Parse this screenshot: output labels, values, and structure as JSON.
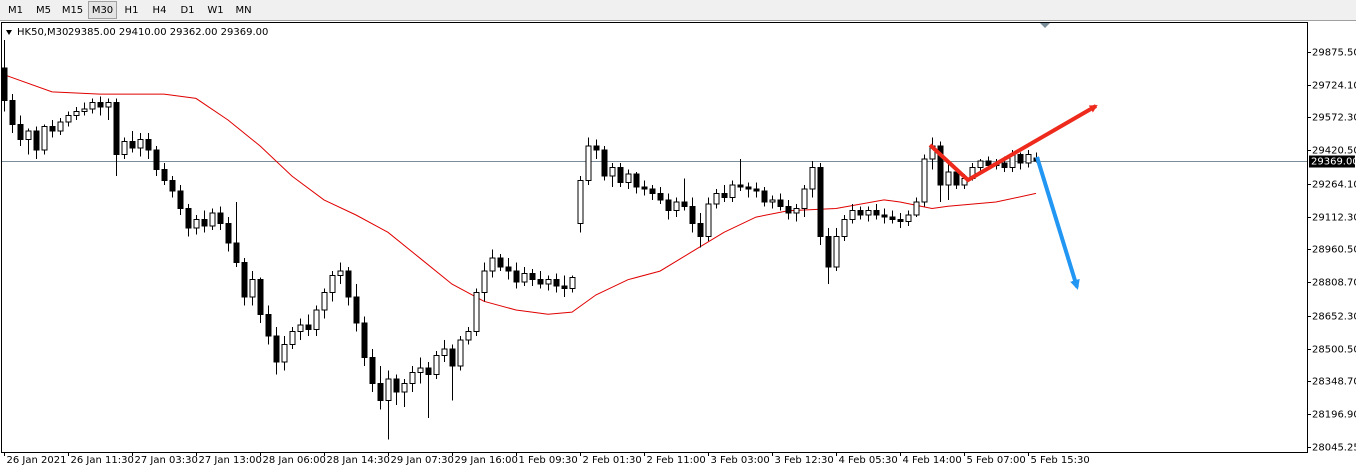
{
  "toolbar": {
    "timeframes": [
      "M1",
      "M5",
      "M15",
      "M30",
      "H1",
      "H4",
      "D1",
      "W1",
      "MN"
    ],
    "active": "M30"
  },
  "header": {
    "symbol": "HK50,M30",
    "quote": "29385.00 29410.00 29362.00 29369.00"
  },
  "chart_data": {
    "type": "candlestick",
    "ylim": [
      28022,
      30014
    ],
    "yticks": [
      {
        "value": 29875.5,
        "label": "29875.50"
      },
      {
        "value": 29724.1,
        "label": "29724.10"
      },
      {
        "value": 29572.3,
        "label": "29572.30"
      },
      {
        "value": 29420.5,
        "label": "29420.50"
      },
      {
        "value": 29264.1,
        "label": "29264.10"
      },
      {
        "value": 29112.3,
        "label": "29112.30"
      },
      {
        "value": 28960.5,
        "label": "28960.50"
      },
      {
        "value": 28808.7,
        "label": "28808.70"
      },
      {
        "value": 28652.3,
        "label": "28652.30"
      },
      {
        "value": 28500.5,
        "label": "28500.50"
      },
      {
        "value": 28348.7,
        "label": "28348.70"
      },
      {
        "value": 28196.9,
        "label": "28196.90"
      },
      {
        "value": 28045.25,
        "label": "28045.25"
      }
    ],
    "current_price": {
      "value": 29369,
      "label": "29369.00"
    },
    "up_color": "#ffffff",
    "down_color": "#000000",
    "wick_color": "#000000",
    "price_line_color": "#7a8e9a",
    "categories": [
      "26 Jan 2021",
      null,
      null,
      null,
      null,
      null,
      null,
      null,
      "26 Jan 11:30",
      null,
      null,
      null,
      null,
      null,
      null,
      null,
      "27 Jan 03:30",
      null,
      null,
      null,
      null,
      null,
      null,
      null,
      "27 Jan 13:00",
      null,
      null,
      null,
      null,
      null,
      null,
      null,
      "28 Jan 06:00",
      null,
      null,
      null,
      null,
      null,
      null,
      null,
      "28 Jan 14:30",
      null,
      null,
      null,
      null,
      null,
      null,
      null,
      "29 Jan 07:30",
      null,
      null,
      null,
      null,
      null,
      null,
      null,
      "29 Jan 16:00",
      null,
      null,
      null,
      null,
      null,
      null,
      null,
      "1 Feb 09:30",
      null,
      null,
      null,
      null,
      null,
      null,
      null,
      "2 Feb 01:30",
      null,
      null,
      null,
      null,
      null,
      null,
      null,
      "2 Feb 11:00",
      null,
      null,
      null,
      null,
      null,
      null,
      null,
      "3 Feb 03:00",
      null,
      null,
      null,
      null,
      null,
      null,
      null,
      "3 Feb 12:30",
      null,
      null,
      null,
      null,
      null,
      null,
      null,
      "4 Feb 05:30",
      null,
      null,
      null,
      null,
      null,
      null,
      null,
      "4 Feb 14:00",
      null,
      null,
      null,
      null,
      null,
      null,
      null,
      "5 Feb 07:00",
      null,
      null,
      null,
      null,
      null,
      null,
      null,
      "5 Feb 15:30",
      null
    ],
    "ohlc": [
      [
        29800,
        29930,
        29600,
        29650
      ],
      [
        29650,
        29680,
        29500,
        29540
      ],
      [
        29540,
        29580,
        29440,
        29470
      ],
      [
        29470,
        29520,
        29400,
        29510
      ],
      [
        29510,
        29530,
        29380,
        29420
      ],
      [
        29420,
        29540,
        29400,
        29530
      ],
      [
        29530,
        29560,
        29480,
        29510
      ],
      [
        29510,
        29570,
        29490,
        29550
      ],
      [
        29550,
        29600,
        29530,
        29580
      ],
      [
        29580,
        29620,
        29560,
        29600
      ],
      [
        29600,
        29640,
        29580,
        29610
      ],
      [
        29610,
        29660,
        29590,
        29640
      ],
      [
        29640,
        29670,
        29580,
        29620
      ],
      [
        29620,
        29660,
        29560,
        29640
      ],
      [
        29640,
        29660,
        29300,
        29400
      ],
      [
        29400,
        29480,
        29380,
        29460
      ],
      [
        29460,
        29510,
        29410,
        29430
      ],
      [
        29430,
        29500,
        29390,
        29470
      ],
      [
        29470,
        29500,
        29380,
        29420
      ],
      [
        29420,
        29440,
        29300,
        29330
      ],
      [
        29330,
        29360,
        29260,
        29280
      ],
      [
        29280,
        29300,
        29200,
        29230
      ],
      [
        29230,
        29260,
        29120,
        29150
      ],
      [
        29150,
        29170,
        29020,
        29060
      ],
      [
        29060,
        29120,
        29030,
        29100
      ],
      [
        29100,
        29140,
        29040,
        29070
      ],
      [
        29070,
        29150,
        29050,
        29130
      ],
      [
        29130,
        29160,
        29050,
        29080
      ],
      [
        29080,
        29110,
        28950,
        28990
      ],
      [
        28990,
        29180,
        28880,
        28900
      ],
      [
        28900,
        28920,
        28700,
        28740
      ],
      [
        28740,
        28860,
        28700,
        28820
      ],
      [
        28820,
        28830,
        28620,
        28660
      ],
      [
        28660,
        28700,
        28520,
        28560
      ],
      [
        28560,
        28600,
        28380,
        28440
      ],
      [
        28440,
        28560,
        28400,
        28520
      ],
      [
        28520,
        28600,
        28500,
        28580
      ],
      [
        28580,
        28640,
        28540,
        28610
      ],
      [
        28610,
        28660,
        28560,
        28590
      ],
      [
        28590,
        28700,
        28560,
        28680
      ],
      [
        28680,
        28780,
        28640,
        28760
      ],
      [
        28760,
        28860,
        28720,
        28840
      ],
      [
        28840,
        28900,
        28800,
        28860
      ],
      [
        28860,
        28880,
        28700,
        28740
      ],
      [
        28740,
        28800,
        28580,
        28620
      ],
      [
        28620,
        28650,
        28420,
        28460
      ],
      [
        28460,
        28500,
        28300,
        28340
      ],
      [
        28340,
        28420,
        28220,
        28260
      ],
      [
        28260,
        28400,
        28080,
        28360
      ],
      [
        28360,
        28380,
        28240,
        28300
      ],
      [
        28300,
        28360,
        28230,
        28340
      ],
      [
        28340,
        28420,
        28300,
        28390
      ],
      [
        28390,
        28460,
        28340,
        28410
      ],
      [
        28410,
        28440,
        28180,
        28380
      ],
      [
        28380,
        28490,
        28360,
        28470
      ],
      [
        28470,
        28540,
        28440,
        28500
      ],
      [
        28500,
        28520,
        28260,
        28420
      ],
      [
        28420,
        28560,
        28400,
        28540
      ],
      [
        28540,
        28600,
        28520,
        28580
      ],
      [
        28580,
        28780,
        28560,
        28760
      ],
      [
        28760,
        28900,
        28720,
        28860
      ],
      [
        28860,
        28960,
        28830,
        28920
      ],
      [
        28920,
        28940,
        28860,
        28880
      ],
      [
        28880,
        28920,
        28820,
        28860
      ],
      [
        28860,
        28900,
        28780,
        28810
      ],
      [
        28810,
        28880,
        28790,
        28850
      ],
      [
        28850,
        28870,
        28790,
        28820
      ],
      [
        28820,
        28860,
        28780,
        28800
      ],
      [
        28800,
        28840,
        28770,
        28820
      ],
      [
        28820,
        28850,
        28760,
        28790
      ],
      [
        28790,
        28840,
        28740,
        28780
      ],
      [
        28780,
        28840,
        28760,
        28830
      ],
      [
        29080,
        29300,
        29040,
        29280
      ],
      [
        29280,
        29480,
        29260,
        29440
      ],
      [
        29440,
        29470,
        29380,
        29420
      ],
      [
        29420,
        29440,
        29280,
        29300
      ],
      [
        29300,
        29360,
        29250,
        29340
      ],
      [
        29340,
        29360,
        29250,
        29270
      ],
      [
        29270,
        29330,
        29240,
        29310
      ],
      [
        29310,
        29320,
        29220,
        29250
      ],
      [
        29250,
        29280,
        29210,
        29240
      ],
      [
        29240,
        29260,
        29190,
        29220
      ],
      [
        29220,
        29250,
        29170,
        29190
      ],
      [
        29190,
        29220,
        29100,
        29140
      ],
      [
        29140,
        29200,
        29110,
        29180
      ],
      [
        29180,
        29290,
        29140,
        29160
      ],
      [
        29160,
        29200,
        29040,
        29080
      ],
      [
        29080,
        29130,
        28970,
        29020
      ],
      [
        29020,
        29200,
        29000,
        29170
      ],
      [
        29170,
        29240,
        29150,
        29220
      ],
      [
        29220,
        29260,
        29180,
        29200
      ],
      [
        29200,
        29280,
        29180,
        29260
      ],
      [
        29260,
        29380,
        29230,
        29250
      ],
      [
        29250,
        29270,
        29200,
        29240
      ],
      [
        29240,
        29270,
        29200,
        29230
      ],
      [
        29230,
        29250,
        29160,
        29180
      ],
      [
        29180,
        29210,
        29150,
        29190
      ],
      [
        29190,
        29220,
        29140,
        29160
      ],
      [
        29160,
        29190,
        29100,
        29130
      ],
      [
        29130,
        29170,
        29090,
        29150
      ],
      [
        29150,
        29260,
        29110,
        29240
      ],
      [
        29240,
        29370,
        29200,
        29340
      ],
      [
        29340,
        29360,
        28980,
        29020
      ],
      [
        29020,
        29060,
        28800,
        28880
      ],
      [
        28880,
        29060,
        28860,
        29020
      ],
      [
        29020,
        29120,
        29000,
        29100
      ],
      [
        29100,
        29170,
        29080,
        29140
      ],
      [
        29140,
        29160,
        29100,
        29120
      ],
      [
        29120,
        29160,
        29090,
        29140
      ],
      [
        29140,
        29170,
        29100,
        29120
      ],
      [
        29120,
        29150,
        29080,
        29110
      ],
      [
        29110,
        29140,
        29080,
        29100
      ],
      [
        29100,
        29130,
        29060,
        29090
      ],
      [
        29090,
        29140,
        29070,
        29120
      ],
      [
        29120,
        29200,
        29110,
        29180
      ],
      [
        29180,
        29400,
        29160,
        29380
      ],
      [
        29380,
        29480,
        29330,
        29440
      ],
      [
        29440,
        29460,
        29180,
        29260
      ],
      [
        29260,
        29360,
        29190,
        29320
      ],
      [
        29320,
        29340,
        29240,
        29260
      ],
      [
        29260,
        29310,
        29240,
        29290
      ],
      [
        29290,
        29360,
        29280,
        29340
      ],
      [
        29340,
        29380,
        29320,
        29370
      ],
      [
        29370,
        29390,
        29330,
        29350
      ],
      [
        29350,
        29380,
        29330,
        29360
      ],
      [
        29360,
        29390,
        29320,
        29340
      ],
      [
        29340,
        29420,
        29320,
        29400
      ],
      [
        29400,
        29410,
        29330,
        29360
      ],
      [
        29360,
        29420,
        29340,
        29400
      ],
      [
        29385,
        29410,
        29362,
        29369
      ]
    ],
    "moving_average": {
      "color": "#e00000",
      "x": [
        0,
        6,
        12,
        20,
        24,
        28,
        32,
        36,
        40,
        44,
        48,
        52,
        56,
        60,
        64,
        68,
        71,
        74,
        78,
        82,
        86,
        90,
        94,
        98,
        104,
        110,
        112,
        116,
        118,
        124,
        129
      ],
      "values": [
        29770,
        29690,
        29680,
        29680,
        29660,
        29560,
        29440,
        29300,
        29190,
        29120,
        29040,
        28920,
        28800,
        28720,
        28680,
        28660,
        28670,
        28750,
        28820,
        28860,
        28950,
        29040,
        29110,
        29140,
        29150,
        29190,
        29180,
        29150,
        29160,
        29180,
        29220
      ]
    }
  }
}
